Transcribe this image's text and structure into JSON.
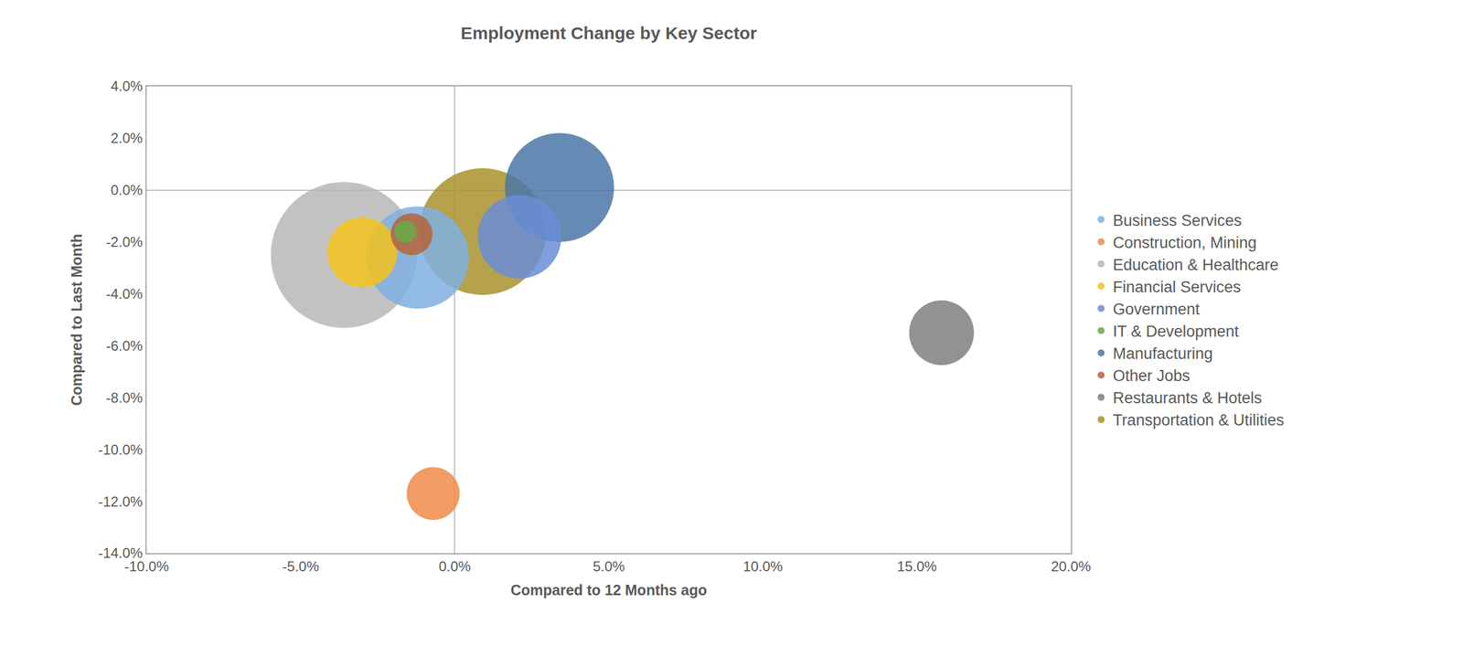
{
  "chart_data": {
    "type": "bubble",
    "title": "Employment Change by Key Sector",
    "x_label": "Compared to 12 Months ago",
    "y_label": "Compared to Last Month",
    "xlim": [
      -10,
      20
    ],
    "xticks": [
      {
        "value": -10,
        "label": "-10.0%"
      },
      {
        "value": -5,
        "label": "-5.0%"
      },
      {
        "value": 0,
        "label": "0.0%"
      },
      {
        "value": 5,
        "label": "5.0%"
      },
      {
        "value": 10,
        "label": "10.0%"
      },
      {
        "value": 15,
        "label": "15.0%"
      },
      {
        "value": 20,
        "label": "20.0%"
      }
    ],
    "ylim": [
      -14,
      4
    ],
    "yticks": [
      {
        "value": -14,
        "label": "-14.0%"
      },
      {
        "value": -12,
        "label": "-12.0%"
      },
      {
        "value": -10,
        "label": "-10.0%"
      },
      {
        "value": -8,
        "label": "-8.0%"
      },
      {
        "value": -6,
        "label": "-6.0%"
      },
      {
        "value": -4,
        "label": "-4.0%"
      },
      {
        "value": -2,
        "label": "-2.0%"
      },
      {
        "value": 0,
        "label": "0.0%"
      },
      {
        "value": 2,
        "label": "2.0%"
      },
      {
        "value": 4,
        "label": "4.0%"
      }
    ],
    "grid": false,
    "legend": "right",
    "series": [
      {
        "name": "Business Services",
        "color": "#7fb0e0",
        "x": [
          -1.2
        ],
        "y": [
          -2.6
        ],
        "size": [
          30
        ]
      },
      {
        "name": "Construction, Mining",
        "color": "#ee8a4a",
        "x": [
          -0.7
        ],
        "y": [
          -11.7
        ],
        "size": [
          8
        ]
      },
      {
        "name": "Education & Healthcare",
        "color": "#b7b7b7",
        "x": [
          -3.6
        ],
        "y": [
          -2.5
        ],
        "size": [
          61
        ]
      },
      {
        "name": "Financial Services",
        "color": "#f5c21b",
        "x": [
          -3.0
        ],
        "y": [
          -2.4
        ],
        "size": [
          14
        ]
      },
      {
        "name": "Government",
        "color": "#6a8dd6",
        "x": [
          2.1
        ],
        "y": [
          -1.8
        ],
        "size": [
          20
        ]
      },
      {
        "name": "IT & Development",
        "color": "#6aaa4a",
        "x": [
          -1.6
        ],
        "y": [
          -1.6
        ],
        "size": [
          1.4
        ]
      },
      {
        "name": "Manufacturing",
        "color": "#4a77a8",
        "x": [
          3.4
        ],
        "y": [
          0.1
        ],
        "size": [
          34
        ]
      },
      {
        "name": "Other Jobs",
        "color": "#b5643a",
        "x": [
          -1.4
        ],
        "y": [
          -1.7
        ],
        "size": [
          5
        ]
      },
      {
        "name": "Restaurants & Hotels",
        "color": "#7f7f7f",
        "x": [
          15.8
        ],
        "y": [
          -5.5
        ],
        "size": [
          12
        ]
      },
      {
        "name": "Transportation & Utilities",
        "color": "#a8922a",
        "x": [
          0.9
        ],
        "y": [
          -1.6
        ],
        "size": [
          46
        ]
      }
    ]
  }
}
